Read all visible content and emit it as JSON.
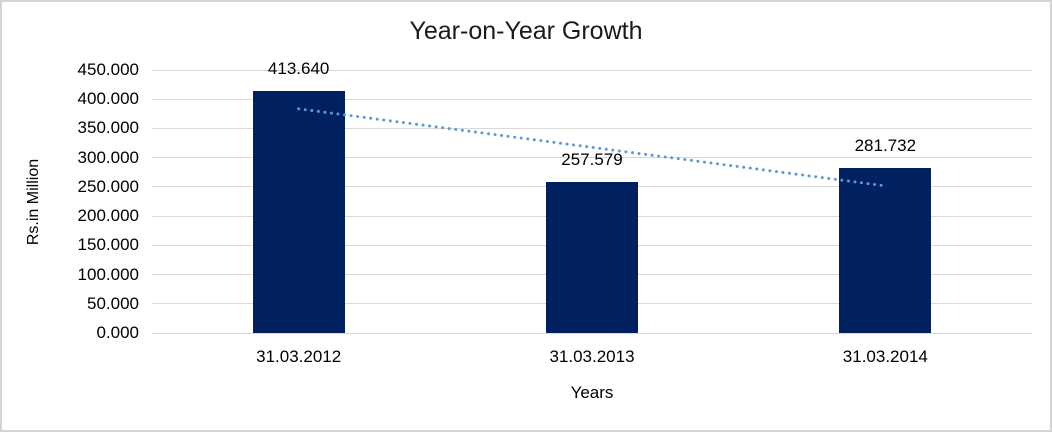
{
  "chart_data": {
    "type": "bar",
    "title": "Year-on-Year Growth",
    "xlabel": "Years",
    "ylabel": "Rs.in Million",
    "categories": [
      "31.03.2012",
      "31.03.2013",
      "31.03.2014"
    ],
    "values": [
      413.64,
      257.579,
      281.732
    ],
    "data_labels": [
      "413.640",
      "257.579",
      "281.732"
    ],
    "ylim": [
      0,
      450
    ],
    "ytick_step": 50,
    "ytick_labels": [
      "0.000",
      "50.000",
      "100.000",
      "150.000",
      "200.000",
      "250.000",
      "300.000",
      "350.000",
      "400.000",
      "450.000"
    ],
    "grid": true,
    "legend": "none",
    "bar_color": "#002060",
    "gridline_color": "#d9d9d9",
    "trendline": {
      "type": "linear",
      "style": "dotted",
      "color": "#5b9bd5",
      "start_value": 383.6,
      "end_value": 251.7
    }
  }
}
